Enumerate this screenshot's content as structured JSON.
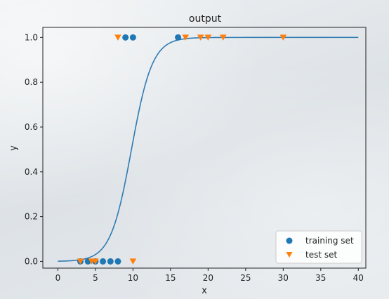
{
  "chart_data": {
    "type": "scatter",
    "title": "output",
    "xlabel": "x",
    "ylabel": "y",
    "xlim": [
      -2,
      41
    ],
    "ylim": [
      -0.03,
      1.045
    ],
    "xticks": [
      0,
      5,
      10,
      15,
      20,
      25,
      30,
      35,
      40
    ],
    "yticks": [
      0.0,
      0.2,
      0.4,
      0.6,
      0.8,
      1.0
    ],
    "xtick_labels": [
      "0",
      "5",
      "10",
      "15",
      "20",
      "25",
      "30",
      "35",
      "40"
    ],
    "ytick_labels": [
      "0.0",
      "0.2",
      "0.4",
      "0.6",
      "0.8",
      "1.0"
    ],
    "grid": false,
    "legend_position": "lower-right",
    "curve": {
      "type": "line",
      "function": "logistic",
      "midpoint": 9.8,
      "steepness": 0.72,
      "x_range": [
        0,
        40
      ],
      "color": "#2f7bb3"
    },
    "series": [
      {
        "name": "training set",
        "marker": "circle",
        "color": "#1f77b4",
        "points": [
          [
            3,
            0
          ],
          [
            4,
            0
          ],
          [
            5,
            0
          ],
          [
            6,
            0
          ],
          [
            7,
            0
          ],
          [
            8,
            0
          ],
          [
            9,
            1
          ],
          [
            10,
            1
          ],
          [
            16,
            1
          ]
        ]
      },
      {
        "name": "test set",
        "marker": "triangle-down",
        "color": "#ff7f0e",
        "points": [
          [
            3,
            0
          ],
          [
            4.5,
            0
          ],
          [
            5,
            0
          ],
          [
            10,
            0
          ],
          [
            8,
            1
          ],
          [
            17,
            1
          ],
          [
            19,
            1
          ],
          [
            20,
            1
          ],
          [
            22,
            1
          ],
          [
            30,
            1
          ]
        ]
      }
    ]
  }
}
